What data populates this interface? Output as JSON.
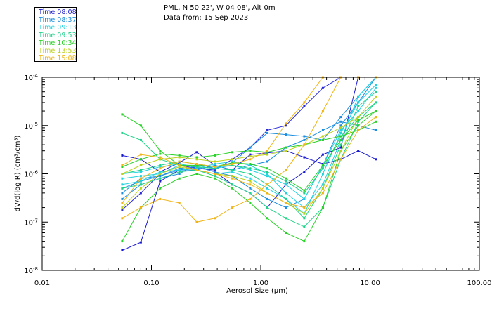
{
  "header": {
    "location": "PML, N 50 22', W 04 08', Alt 0m",
    "date_line": "Data from: 15 Sep 2023"
  },
  "legend": [
    {
      "label": "Time 08:08",
      "color": "#1a1ad2"
    },
    {
      "label": "Time 08:37",
      "color": "#1a8ee0"
    },
    {
      "label": "Time 09:13",
      "color": "#20d2e0"
    },
    {
      "label": "Time 09:53",
      "color": "#22d28a"
    },
    {
      "label": "Time 10:34",
      "color": "#28d228"
    },
    {
      "label": "Time 13:53",
      "color": "#bcd21a"
    },
    {
      "label": "Time 15:08",
      "color": "#f0b414"
    }
  ],
  "chart_data": {
    "type": "line",
    "xscale": "log",
    "yscale": "log",
    "xlim": [
      0.01,
      100
    ],
    "ylim": [
      1e-08,
      0.0001
    ],
    "xlabel": "Aerosol Size (μm)",
    "ylabel": "dV/d(log R) (cm³/cm³)",
    "x_ticks": [
      {
        "value": 0.01,
        "label": "0.01"
      },
      {
        "value": 0.1,
        "label": "0.10"
      },
      {
        "value": 1,
        "label": "1.00"
      },
      {
        "value": 10,
        "label": "10.00"
      },
      {
        "value": 100,
        "label": "100.00"
      }
    ],
    "y_ticks": [
      {
        "value": 1e-08,
        "base": "10",
        "exp": "-8"
      },
      {
        "value": 1e-07,
        "base": "10",
        "exp": "-7"
      },
      {
        "value": 1e-06,
        "base": "10",
        "exp": "-6"
      },
      {
        "value": 1e-05,
        "base": "10",
        "exp": "-5"
      },
      {
        "value": 0.0001,
        "base": "10",
        "exp": "-4"
      }
    ],
    "x": [
      0.054,
      0.08,
      0.12,
      0.18,
      0.26,
      0.38,
      0.55,
      0.8,
      1.15,
      1.7,
      2.5,
      3.7,
      5.4,
      7.8,
      11.3
    ],
    "series": [
      {
        "color": "#1a1ad2",
        "values": [
          2.6e-08,
          3.8e-08,
          7e-07,
          1.2e-06,
          1.4e-06,
          1.1e-06,
          6e-07,
          4e-07,
          2e-07,
          6e-07,
          1.1e-06,
          2.5e-06,
          3.5e-06,
          0.0001,
          0.0001
        ]
      },
      {
        "color": "#1a1ad2",
        "values": [
          2.4e-06,
          2e-06,
          1.1e-06,
          1.7e-06,
          2.8e-06,
          1.5e-06,
          1.2e-06,
          2.5e-06,
          2.7e-06,
          3e-06,
          2.2e-06,
          1.6e-06,
          2e-06,
          3e-06,
          2e-06
        ]
      },
      {
        "color": "#2a2ad8",
        "values": [
          1.8e-07,
          4e-07,
          1e-06,
          1.5e-06,
          1.3e-06,
          1.2e-06,
          2e-06,
          3.5e-06,
          8e-06,
          1e-05,
          2.5e-05,
          6e-05,
          0.0001,
          0.0001,
          0.0001
        ]
      },
      {
        "color": "#1a8ee0",
        "values": [
          3e-07,
          6e-07,
          8e-07,
          1e-06,
          1.6e-06,
          1.3e-06,
          1.7e-06,
          3.5e-06,
          7e-06,
          6.5e-06,
          6e-06,
          5e-06,
          1.5e-05,
          4e-05,
          0.0001
        ]
      },
      {
        "color": "#1a8ee0",
        "values": [
          5e-07,
          7e-07,
          9e-07,
          1.2e-06,
          1.2e-06,
          1.5e-06,
          1.2e-06,
          1.5e-06,
          1.8e-06,
          3.5e-06,
          5e-06,
          8e-06,
          1.2e-05,
          1e-05,
          8e-06
        ]
      },
      {
        "color": "#1a8ee0",
        "values": [
          4e-07,
          8e-07,
          9e-07,
          1.3e-06,
          1.4e-06,
          1.1e-06,
          9e-07,
          5e-07,
          3e-07,
          2e-07,
          3e-07,
          1.5e-06,
          1e-05,
          3e-05,
          0.0001
        ]
      },
      {
        "color": "#20d2e0",
        "values": [
          6e-07,
          7e-07,
          1.1e-06,
          1.2e-06,
          1.3e-06,
          1.6e-06,
          1.8e-06,
          1.5e-06,
          1e-06,
          4e-07,
          2e-07,
          6e-07,
          5e-06,
          4e-05,
          0.0001
        ]
      },
      {
        "color": "#20d2e0",
        "values": [
          1e-06,
          1.1e-06,
          1.4e-06,
          1.6e-06,
          1.4e-06,
          1.3e-06,
          1.5e-06,
          1.2e-06,
          9e-07,
          6e-07,
          3e-07,
          1.5e-06,
          8e-06,
          2e-05,
          6e-05
        ]
      },
      {
        "color": "#20d2e0",
        "values": [
          8e-07,
          9e-07,
          1e-06,
          1.5e-06,
          1.2e-06,
          1e-06,
          1.1e-06,
          8e-07,
          5e-07,
          3e-07,
          1.5e-07,
          1e-06,
          7e-06,
          3e-05,
          7e-05
        ]
      },
      {
        "color": "#22d28a",
        "values": [
          7e-06,
          5e-06,
          2e-06,
          1.5e-06,
          1.4e-06,
          1.3e-06,
          1.2e-06,
          1e-06,
          6e-07,
          3e-07,
          1.2e-07,
          5e-07,
          4e-06,
          2.5e-05,
          5e-05
        ]
      },
      {
        "color": "#22d28a",
        "values": [
          1e-06,
          1.2e-06,
          1.5e-06,
          1.8e-06,
          1.6e-06,
          1.4e-06,
          1.5e-06,
          1.3e-06,
          1.1e-06,
          7e-07,
          4e-07,
          1.3e-06,
          6e-06,
          1.5e-05,
          3e-05
        ]
      },
      {
        "color": "#22d28a",
        "values": [
          5e-07,
          6e-07,
          8e-07,
          1.1e-06,
          1.2e-06,
          9e-07,
          6e-07,
          4e-07,
          2e-07,
          1.2e-07,
          8e-08,
          2e-07,
          2e-06,
          1.2e-05,
          3e-05
        ]
      },
      {
        "color": "#28d228",
        "values": [
          1.7e-05,
          1e-05,
          3e-06,
          1.5e-06,
          1.5e-06,
          1.4e-06,
          1.7e-06,
          1.6e-06,
          1.3e-06,
          8e-07,
          4.5e-07,
          1.5e-06,
          5e-06,
          1.3e-05,
          2e-05
        ]
      },
      {
        "color": "#28d228",
        "values": [
          4e-08,
          2e-07,
          5e-07,
          8e-07,
          1e-06,
          8e-07,
          5e-07,
          2.5e-07,
          1.2e-07,
          6e-08,
          4e-08,
          2e-07,
          3e-06,
          1e-05,
          2e-05
        ]
      },
      {
        "color": "#28d228",
        "values": [
          1.4e-06,
          2e-06,
          2.6e-06,
          2.4e-06,
          2.2e-06,
          2.4e-06,
          2.8e-06,
          3e-06,
          2.8e-06,
          3.5e-06,
          4e-06,
          5e-06,
          6e-06,
          8e-06,
          1.2e-05
        ]
      },
      {
        "color": "#bcd21a",
        "values": [
          2e-07,
          5e-07,
          1e-06,
          1.4e-06,
          1.2e-06,
          1e-06,
          9e-07,
          7e-07,
          4e-07,
          2.5e-07,
          1.5e-07,
          5e-07,
          3e-06,
          1.5e-05,
          4e-05
        ]
      },
      {
        "color": "#bcd21a",
        "values": [
          1e-06,
          1.5e-06,
          2e-06,
          2.2e-06,
          2e-06,
          1.8e-06,
          2e-06,
          2.3e-06,
          2.5e-06,
          3e-06,
          4e-06,
          6e-06,
          9e-06,
          1.5e-05,
          1.5e-05
        ]
      },
      {
        "color": "#f0b414",
        "values": [
          1.2e-07,
          2e-07,
          3e-07,
          2.5e-07,
          1e-07,
          1.2e-07,
          2e-07,
          3e-07,
          6e-07,
          1.2e-06,
          4e-06,
          2e-05,
          0.0001,
          0.0001,
          0.0001
        ]
      },
      {
        "color": "#f0b414",
        "values": [
          1.5e-06,
          2.5e-06,
          2.2e-06,
          1.5e-06,
          1.2e-06,
          1e-06,
          8e-07,
          6e-07,
          4e-07,
          2.5e-07,
          2e-07,
          4e-07,
          2e-06,
          8e-06,
          1.5e-05
        ]
      },
      {
        "color": "#f0b414",
        "values": [
          2.5e-07,
          8e-07,
          1.3e-06,
          1.8e-06,
          1.6e-06,
          1.4e-06,
          1.6e-06,
          2e-06,
          3e-06,
          1.1e-05,
          3e-05,
          0.0001,
          0.0001,
          0.0001,
          0.0001
        ]
      }
    ]
  }
}
